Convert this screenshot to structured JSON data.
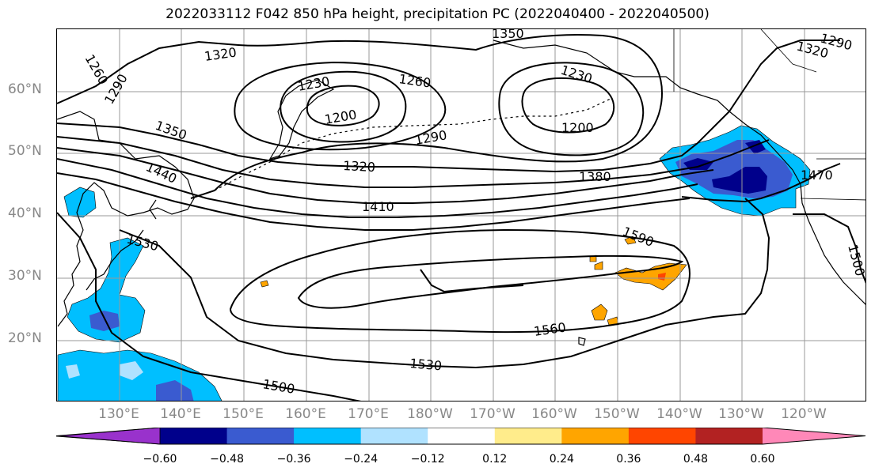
{
  "title": "2022033112 F042 850 hPa height, precipitation PC (2022040400 - 2022040500)",
  "latitude_labels": [
    "60°N",
    "50°N",
    "40°N",
    "30°N",
    "20°N"
  ],
  "longitude_labels": [
    "130°E",
    "140°E",
    "150°E",
    "160°E",
    "170°E",
    "180°W",
    "170°W",
    "160°W",
    "150°W",
    "140°W",
    "130°W",
    "120°W"
  ],
  "contour_labels": [
    "1350",
    "1320",
    "1290",
    "1260",
    "1230",
    "1200",
    "1260",
    "1290",
    "1320",
    "1230",
    "1200",
    "1380",
    "1440",
    "1410",
    "1350",
    "1530",
    "1590",
    "1560",
    "1530",
    "1500",
    "1470",
    "1500",
    "1290",
    "1320"
  ],
  "colorbar": {
    "tick_labels": [
      "−0.60",
      "−0.48",
      "−0.36",
      "−0.24",
      "−0.12",
      "0.12",
      "0.24",
      "0.36",
      "0.48",
      "0.60"
    ],
    "colors": [
      "#9932cc",
      "#00008b",
      "#3a5bd0",
      "#00bfff",
      "#b0e2ff",
      "#ffffff",
      "#ffec8b",
      "#ffa500",
      "#ff4500",
      "#b22222",
      "#ff88b8"
    ]
  },
  "colors": {
    "land_outline": "#000000",
    "grid": "#999999",
    "axis_label": "#888888"
  }
}
